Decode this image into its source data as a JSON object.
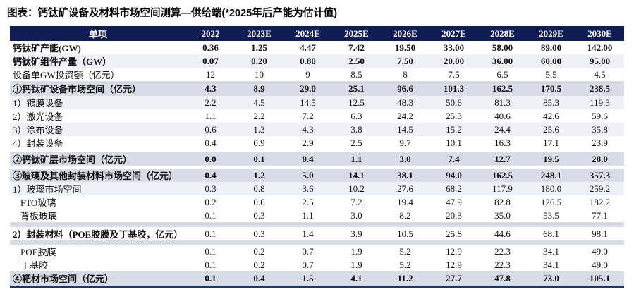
{
  "page": {
    "title": "图表：钙钛矿设备及材料市场空间测算—供给端(*2025年后产能为估计值)"
  },
  "colors": {
    "header_bg": "#101d54",
    "section_bg": "#d8dce6",
    "stripe_bg": "#eef2f8",
    "bottom_border": "#1f3864",
    "header_text": "#ffffff"
  },
  "table": {
    "columns": [
      "单项",
      "2022",
      "2023E",
      "2024E",
      "2025E",
      "2026E",
      "2027E",
      "2028E",
      "2029E",
      "2030E"
    ],
    "rows": [
      {
        "label": "钙钛矿产能(GW)",
        "style": "bold",
        "values": [
          "0.36",
          "1.25",
          "4.47",
          "7.42",
          "19.50",
          "33.00",
          "58.00",
          "89.00",
          "142.00"
        ]
      },
      {
        "label": "钙钛矿组件产量（GW）",
        "style": "bold stripe",
        "values": [
          "0.07",
          "0.20",
          "0.80",
          "2.50",
          "7.50",
          "20.00",
          "36.00",
          "60.00",
          "95.00"
        ]
      },
      {
        "label": "设备单GW投资额（亿元）",
        "style": "",
        "values": [
          "12",
          "10",
          "9",
          "8.5",
          "8",
          "7.5",
          "6.5",
          "5.5",
          "4.5"
        ]
      },
      {
        "label": "①钙钛矿设备市场空间（亿元）",
        "style": "section",
        "values": [
          "4.3",
          "8.9",
          "29.0",
          "25.1",
          "96.6",
          "101.3",
          "162.5",
          "170.5",
          "238.5"
        ]
      },
      {
        "label": "1）镀膜设备",
        "style": "stripe",
        "values": [
          "2.2",
          "4.5",
          "14.5",
          "12.5",
          "48.3",
          "50.6",
          "81.3",
          "85.3",
          "119.3"
        ]
      },
      {
        "label": "2）激光设备",
        "style": "",
        "values": [
          "1.1",
          "2.2",
          "7.2",
          "6.3",
          "24.2",
          "25.3",
          "40.6",
          "42.6",
          "59.6"
        ]
      },
      {
        "label": "3）涂布设备",
        "style": "stripe",
        "values": [
          "0.6",
          "1.3",
          "4.3",
          "3.8",
          "14.5",
          "15.2",
          "24.4",
          "25.6",
          "35.8"
        ]
      },
      {
        "label": "4）封装设备",
        "style": "",
        "values": [
          "0.4",
          "0.9",
          "2.9",
          "2.5",
          "9.7",
          "10.1",
          "16.3",
          "17.1",
          "23.9"
        ]
      },
      {
        "label": "②钙钛矿层市场空间（亿元）",
        "style": "section gap-top",
        "values": [
          "0.0",
          "0.1",
          "0.4",
          "1.1",
          "3.0",
          "7.4",
          "12.7",
          "19.5",
          "28.0"
        ]
      },
      {
        "label": "③玻璃及其他封装材料市场空间（亿元）",
        "style": "section gap-top",
        "values": [
          "0.4",
          "1.2",
          "5.0",
          "14.1",
          "38.1",
          "94.0",
          "162.5",
          "248.1",
          "357.3"
        ]
      },
      {
        "label": "1）玻璃市场空间",
        "style": "stripe",
        "values": [
          "0.3",
          "0.8",
          "3.6",
          "10.2",
          "27.6",
          "68.2",
          "117.9",
          "180.0",
          "259.2"
        ]
      },
      {
        "label": "FTO玻璃",
        "style": "indent",
        "values": [
          "0.2",
          "0.6",
          "2.5",
          "7.2",
          "19.4",
          "47.9",
          "82.8",
          "126.5",
          "182.2"
        ]
      },
      {
        "label": "背板玻璃",
        "style": "indent",
        "values": [
          "0.1",
          "0.3",
          "1.1",
          "3.0",
          "8.2",
          "20.3",
          "35.0",
          "53.5",
          "77.1"
        ]
      },
      {
        "label": "2）封装材料（POE胶膜及丁基胶，亿元）",
        "style": "pack",
        "values": [
          "0.1",
          "0.3",
          "1.4",
          "3.9",
          "10.5",
          "25.8",
          "44.6",
          "68.1",
          "98.1"
        ]
      },
      {
        "label": "POE胶膜",
        "style": "indent",
        "values": [
          "0.1",
          "0.2",
          "0.7",
          "1.9",
          "5.2",
          "12.9",
          "22.3",
          "34.1",
          "49.0"
        ]
      },
      {
        "label": "丁基胶",
        "style": "indent",
        "values": [
          "0.1",
          "0.2",
          "0.7",
          "1.9",
          "5.2",
          "12.9",
          "22.3",
          "34.1",
          "49.0"
        ]
      },
      {
        "label": "④靶材市场空间（亿元）",
        "style": "section last",
        "values": [
          "0.1",
          "0.4",
          "1.5",
          "4.1",
          "11.2",
          "27.7",
          "47.8",
          "73.0",
          "105.1"
        ]
      }
    ]
  }
}
